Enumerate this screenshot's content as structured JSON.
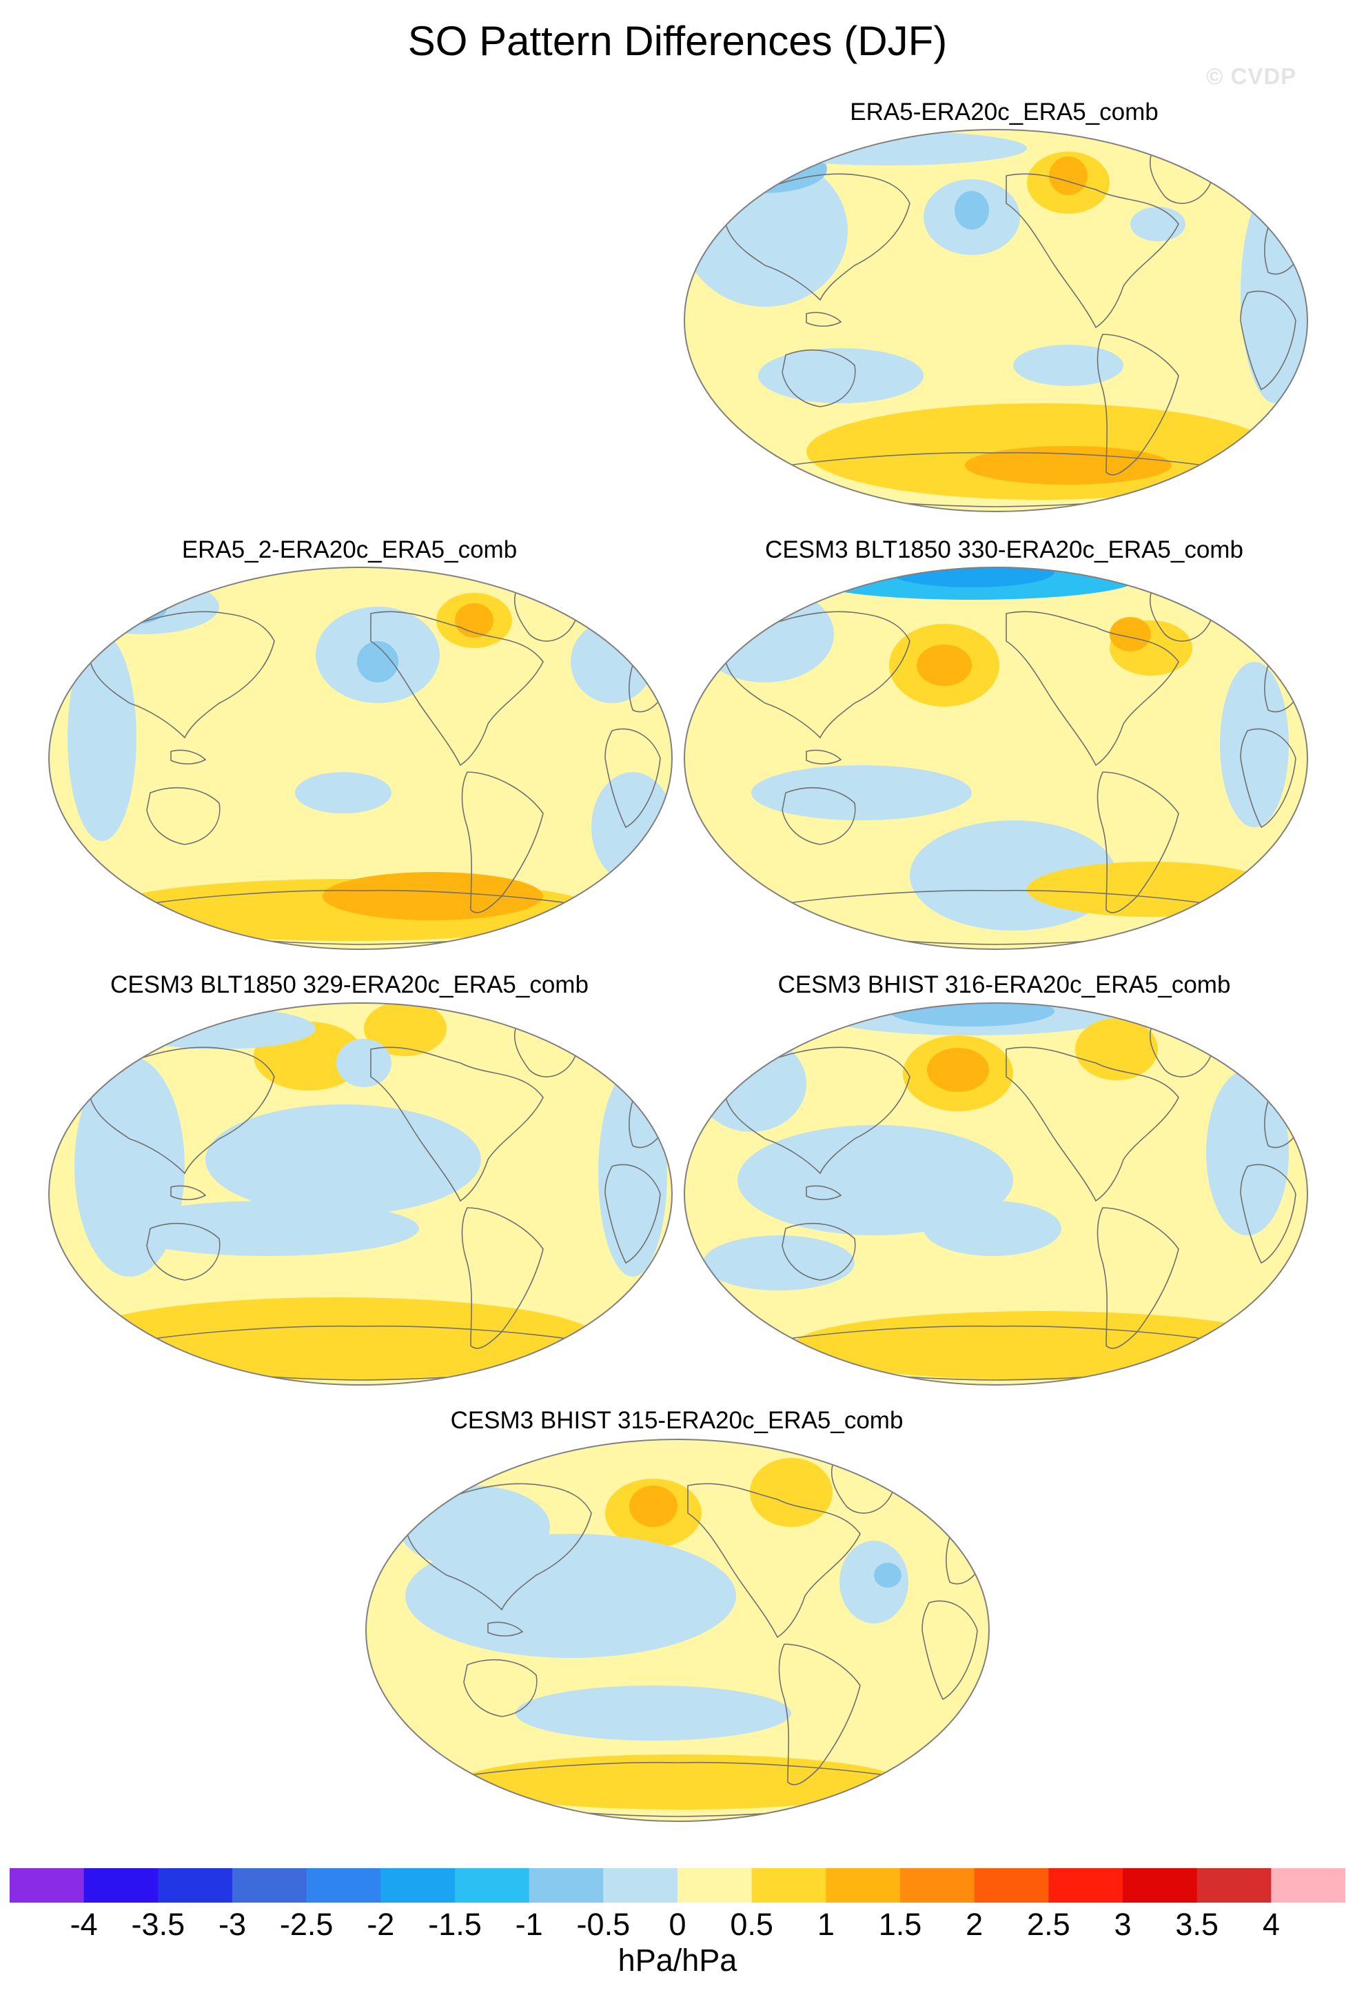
{
  "title": "SO Pattern Differences (DJF)",
  "watermark": "© CVDP",
  "colors": {
    "background": "#ffffff",
    "map_outline": "#808080",
    "coast": "#707070"
  },
  "panels": [
    {
      "title": "ERA5-ERA20c_ERA5_comb",
      "pattern": "A"
    },
    {
      "title": "ERA5_2-ERA20c_ERA5_comb",
      "pattern": "B"
    },
    {
      "title": "CESM3 BLT1850 330-ERA20c_ERA5_comb",
      "pattern": "C"
    },
    {
      "title": "CESM3 BLT1850 329-ERA20c_ERA5_comb",
      "pattern": "D"
    },
    {
      "title": "CESM3 BHIST 316-ERA20c_ERA5_comb",
      "pattern": "E"
    },
    {
      "title": "CESM3 BHIST 315-ERA20c_ERA5_comb",
      "pattern": "F"
    }
  ],
  "colorbar": {
    "units": "hPa/hPa",
    "tick_labels": [
      "-4",
      "-3.5",
      "-3",
      "-2.5",
      "-2",
      "-1.5",
      "-1",
      "-0.5",
      "0",
      "0.5",
      "1",
      "1.5",
      "2",
      "2.5",
      "3",
      "3.5",
      "4"
    ],
    "colors": [
      "#8a2ce6",
      "#2c11f2",
      "#2336e6",
      "#3d6bdc",
      "#2f84f0",
      "#1ba4f2",
      "#2bbff3",
      "#88c9ef",
      "#bde1f2",
      "#fff6a6",
      "#ffd92e",
      "#ffb40f",
      "#ff8c0c",
      "#ff5c0a",
      "#ff1e0a",
      "#e00606",
      "#d72d2d",
      "#ffb3bc"
    ]
  }
}
